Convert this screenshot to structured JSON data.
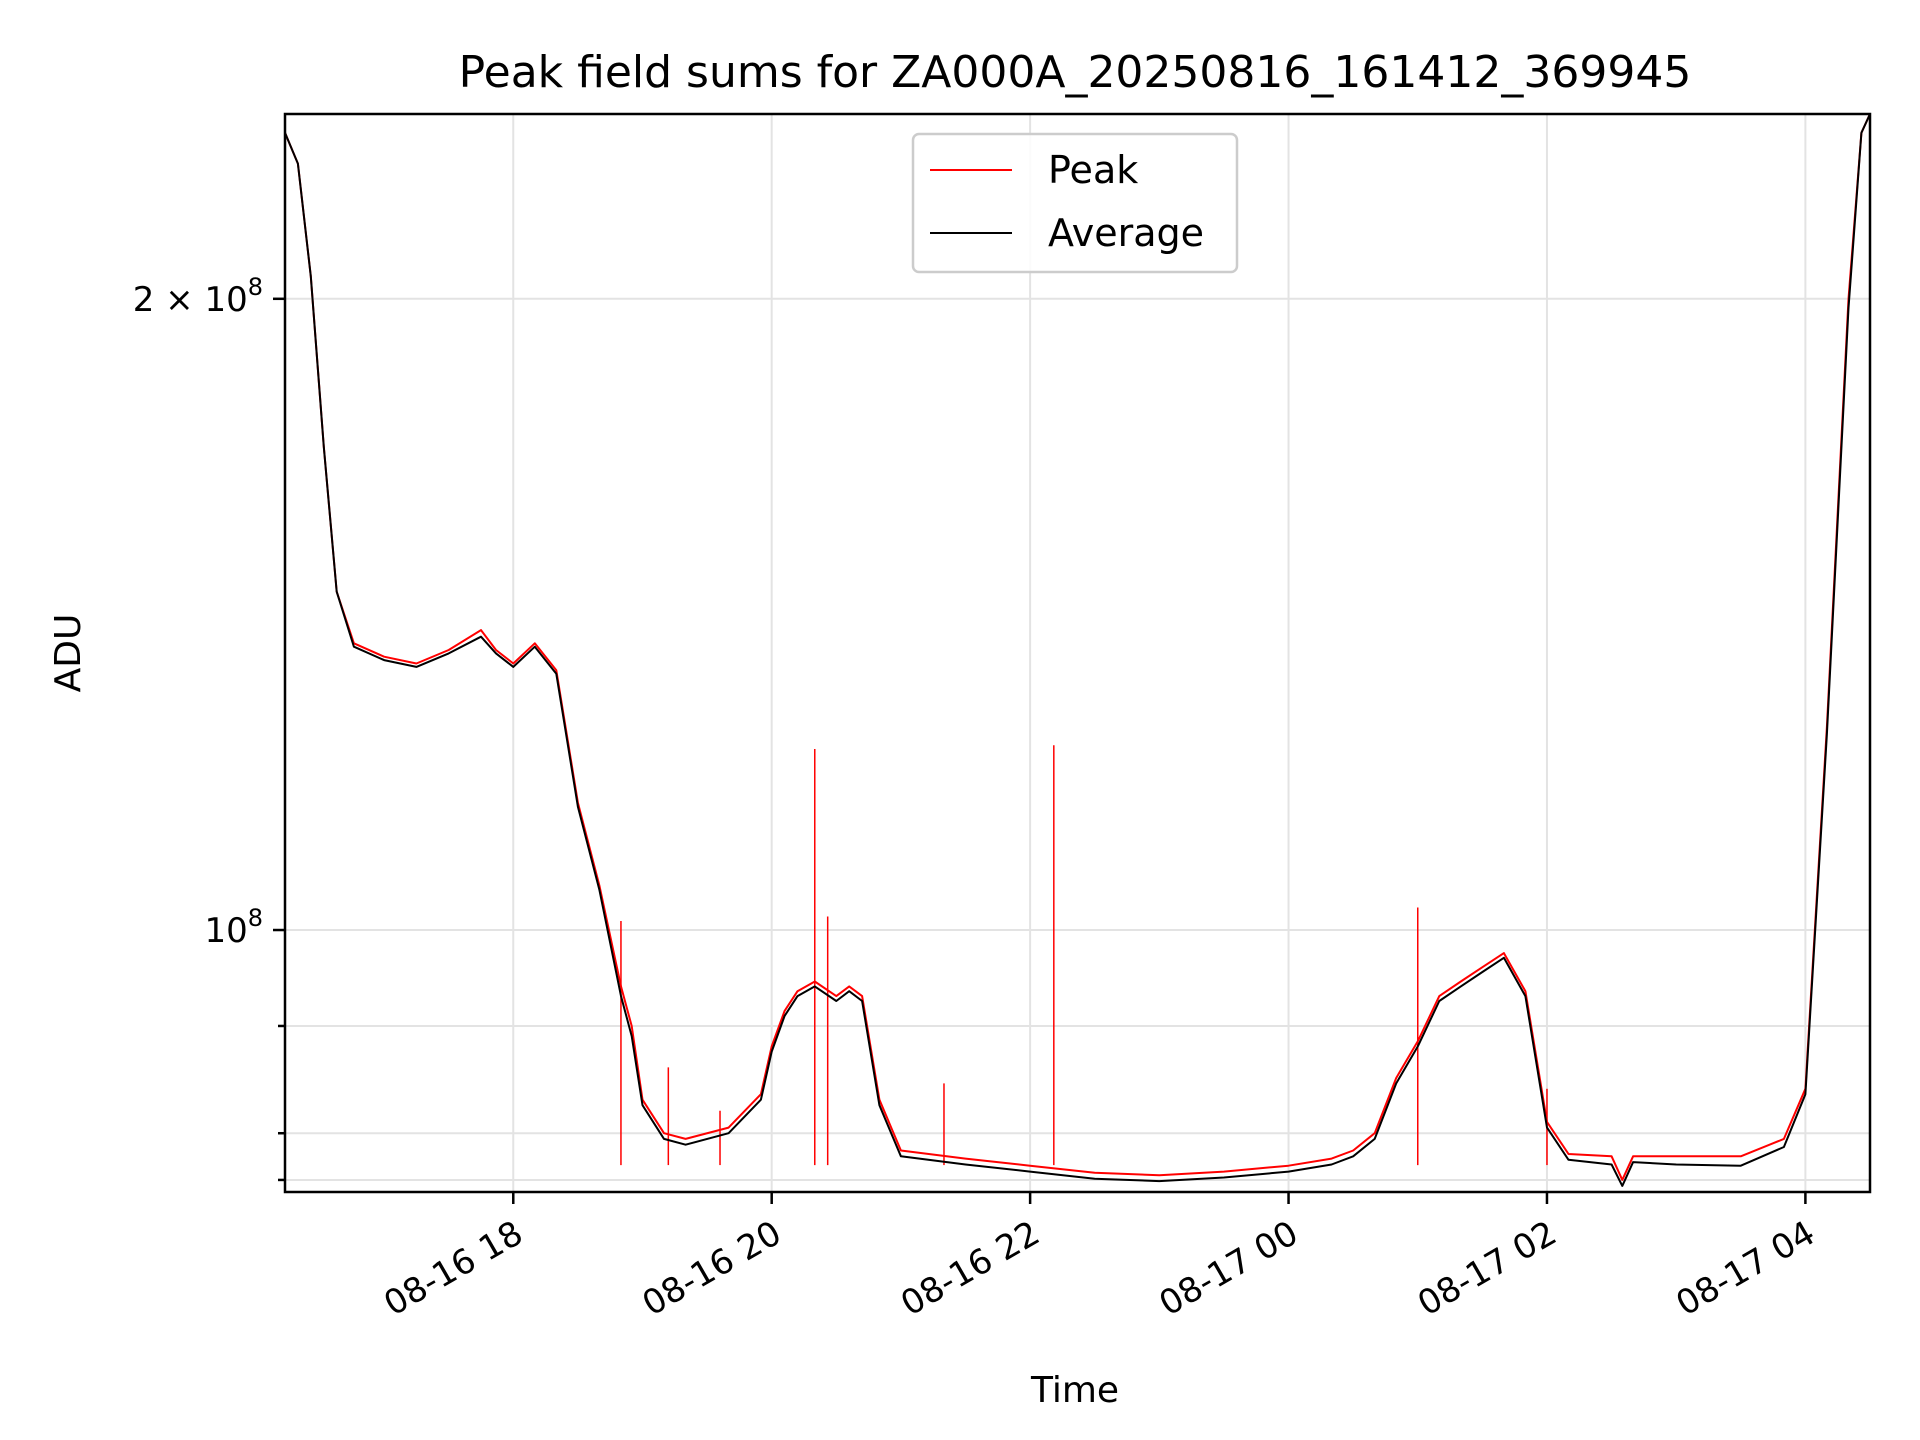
{
  "chart_data": {
    "type": "line",
    "title": "Peak field sums for ZA000A_20250816_161412_369945",
    "xlabel": "Time",
    "ylabel": "ADU",
    "y_scale": "log",
    "ylim": [
      75000000,
      245000000
    ],
    "x_range": [
      "2025-08-16 16:14",
      "2025-08-17 04:30"
    ],
    "x_ticks": [
      {
        "t": "2025-08-16 18:00",
        "label": "08-16 18"
      },
      {
        "t": "2025-08-16 20:00",
        "label": "08-16 20"
      },
      {
        "t": "2025-08-16 22:00",
        "label": "08-16 22"
      },
      {
        "t": "2025-08-17 00:00",
        "label": "08-17 00"
      },
      {
        "t": "2025-08-17 02:00",
        "label": "08-17 02"
      },
      {
        "t": "2025-08-17 04:00",
        "label": "08-17 04"
      }
    ],
    "y_major_ticks": [
      {
        "v": 100000000,
        "base": "10",
        "exp": "8",
        "coef": ""
      },
      {
        "v": 200000000,
        "base": "10",
        "exp": "8",
        "coef": "2 × "
      }
    ],
    "y_minor_ticks": [
      76000000,
      80000000,
      90000000
    ],
    "grid": true,
    "legend_position": "top-center",
    "series": [
      {
        "name": "Peak",
        "color": "#ff0000",
        "points": [
          [
            "2025-08-16 16:14",
            240000000
          ],
          [
            "2025-08-16 16:20",
            232000000
          ],
          [
            "2025-08-16 16:26",
            205000000
          ],
          [
            "2025-08-16 16:32",
            170000000
          ],
          [
            "2025-08-16 16:38",
            145000000
          ],
          [
            "2025-08-16 16:46",
            137000000
          ],
          [
            "2025-08-16 17:00",
            135000000
          ],
          [
            "2025-08-16 17:15",
            134000000
          ],
          [
            "2025-08-16 17:30",
            136000000
          ],
          [
            "2025-08-16 17:45",
            139000000
          ],
          [
            "2025-08-16 17:52",
            136000000
          ],
          [
            "2025-08-16 18:00",
            134000000
          ],
          [
            "2025-08-16 18:10",
            137000000
          ],
          [
            "2025-08-16 18:20",
            133000000
          ],
          [
            "2025-08-16 18:30",
            115000000
          ],
          [
            "2025-08-16 18:40",
            105000000
          ],
          [
            "2025-08-16 18:50",
            94000000
          ],
          [
            "2025-08-16 18:55",
            90000000
          ],
          [
            "2025-08-16 19:00",
            83000000
          ],
          [
            "2025-08-16 19:10",
            80000000
          ],
          [
            "2025-08-16 19:20",
            79500000
          ],
          [
            "2025-08-16 19:40",
            80500000
          ],
          [
            "2025-08-16 19:55",
            83500000
          ],
          [
            "2025-08-16 20:00",
            88000000
          ],
          [
            "2025-08-16 20:06",
            91500000
          ],
          [
            "2025-08-16 20:12",
            93500000
          ],
          [
            "2025-08-16 20:20",
            94500000
          ],
          [
            "2025-08-16 20:30",
            93000000
          ],
          [
            "2025-08-16 20:36",
            94000000
          ],
          [
            "2025-08-16 20:42",
            93000000
          ],
          [
            "2025-08-16 20:50",
            83000000
          ],
          [
            "2025-08-16 21:00",
            78500000
          ],
          [
            "2025-08-16 21:30",
            77800000
          ],
          [
            "2025-08-16 22:00",
            77200000
          ],
          [
            "2025-08-16 22:30",
            76600000
          ],
          [
            "2025-08-16 23:00",
            76400000
          ],
          [
            "2025-08-16 23:30",
            76700000
          ],
          [
            "2025-08-17 00:00",
            77200000
          ],
          [
            "2025-08-17 00:20",
            77800000
          ],
          [
            "2025-08-17 00:30",
            78500000
          ],
          [
            "2025-08-17 00:40",
            80000000
          ],
          [
            "2025-08-17 00:50",
            85000000
          ],
          [
            "2025-08-17 01:00",
            88500000
          ],
          [
            "2025-08-17 01:10",
            93000000
          ],
          [
            "2025-08-17 01:20",
            94500000
          ],
          [
            "2025-08-17 01:30",
            96000000
          ],
          [
            "2025-08-17 01:40",
            97500000
          ],
          [
            "2025-08-17 01:50",
            93500000
          ],
          [
            "2025-08-17 02:00",
            81000000
          ],
          [
            "2025-08-17 02:10",
            78200000
          ],
          [
            "2025-08-17 02:30",
            78000000
          ],
          [
            "2025-08-17 02:35",
            76000000
          ],
          [
            "2025-08-17 02:40",
            78000000
          ],
          [
            "2025-08-17 03:00",
            78000000
          ],
          [
            "2025-08-17 03:30",
            78000000
          ],
          [
            "2025-08-17 03:50",
            79500000
          ],
          [
            "2025-08-17 04:00",
            84000000
          ],
          [
            "2025-08-17 04:10",
            125000000
          ],
          [
            "2025-08-17 04:20",
            200000000
          ],
          [
            "2025-08-17 04:26",
            240000000
          ],
          [
            "2025-08-17 04:30",
            245000000
          ]
        ],
        "spikes": [
          [
            "2025-08-16 18:50",
            101000000
          ],
          [
            "2025-08-16 19:12",
            86000000
          ],
          [
            "2025-08-16 19:36",
            82000000
          ],
          [
            "2025-08-16 20:20",
            122000000
          ],
          [
            "2025-08-16 20:26",
            101500000
          ],
          [
            "2025-08-16 21:20",
            84500000
          ],
          [
            "2025-08-16 22:11",
            122500000
          ],
          [
            "2025-08-17 01:00",
            102500000
          ],
          [
            "2025-08-17 02:00",
            84000000
          ]
        ]
      },
      {
        "name": "Average",
        "color": "#000000",
        "points": [
          [
            "2025-08-16 16:14",
            240000000
          ],
          [
            "2025-08-16 16:20",
            232000000
          ],
          [
            "2025-08-16 16:26",
            205000000
          ],
          [
            "2025-08-16 16:32",
            170000000
          ],
          [
            "2025-08-16 16:38",
            145000000
          ],
          [
            "2025-08-16 16:46",
            136500000
          ],
          [
            "2025-08-16 17:00",
            134500000
          ],
          [
            "2025-08-16 17:15",
            133500000
          ],
          [
            "2025-08-16 17:30",
            135500000
          ],
          [
            "2025-08-16 17:45",
            138000000
          ],
          [
            "2025-08-16 17:52",
            135500000
          ],
          [
            "2025-08-16 18:00",
            133500000
          ],
          [
            "2025-08-16 18:10",
            136500000
          ],
          [
            "2025-08-16 18:20",
            132500000
          ],
          [
            "2025-08-16 18:30",
            114500000
          ],
          [
            "2025-08-16 18:40",
            104500000
          ],
          [
            "2025-08-16 18:50",
            93000000
          ],
          [
            "2025-08-16 18:55",
            89000000
          ],
          [
            "2025-08-16 19:00",
            82500000
          ],
          [
            "2025-08-16 19:10",
            79500000
          ],
          [
            "2025-08-16 19:20",
            79000000
          ],
          [
            "2025-08-16 19:40",
            80000000
          ],
          [
            "2025-08-16 19:55",
            83000000
          ],
          [
            "2025-08-16 20:00",
            87500000
          ],
          [
            "2025-08-16 20:06",
            91000000
          ],
          [
            "2025-08-16 20:12",
            93000000
          ],
          [
            "2025-08-16 20:20",
            94000000
          ],
          [
            "2025-08-16 20:30",
            92500000
          ],
          [
            "2025-08-16 20:36",
            93500000
          ],
          [
            "2025-08-16 20:42",
            92500000
          ],
          [
            "2025-08-16 20:50",
            82500000
          ],
          [
            "2025-08-16 21:00",
            78000000
          ],
          [
            "2025-08-16 21:30",
            77300000
          ],
          [
            "2025-08-16 22:00",
            76700000
          ],
          [
            "2025-08-16 22:30",
            76100000
          ],
          [
            "2025-08-16 23:00",
            75900000
          ],
          [
            "2025-08-16 23:30",
            76200000
          ],
          [
            "2025-08-17 00:00",
            76700000
          ],
          [
            "2025-08-17 00:20",
            77300000
          ],
          [
            "2025-08-17 00:30",
            78000000
          ],
          [
            "2025-08-17 00:40",
            79500000
          ],
          [
            "2025-08-17 00:50",
            84500000
          ],
          [
            "2025-08-17 01:00",
            88000000
          ],
          [
            "2025-08-17 01:10",
            92500000
          ],
          [
            "2025-08-17 01:20",
            94000000
          ],
          [
            "2025-08-17 01:30",
            95500000
          ],
          [
            "2025-08-17 01:40",
            97000000
          ],
          [
            "2025-08-17 01:50",
            93000000
          ],
          [
            "2025-08-17 02:00",
            80500000
          ],
          [
            "2025-08-17 02:10",
            77700000
          ],
          [
            "2025-08-17 02:30",
            77300000
          ],
          [
            "2025-08-17 02:35",
            75500000
          ],
          [
            "2025-08-17 02:40",
            77500000
          ],
          [
            "2025-08-17 03:00",
            77300000
          ],
          [
            "2025-08-17 03:30",
            77200000
          ],
          [
            "2025-08-17 03:50",
            78800000
          ],
          [
            "2025-08-17 04:00",
            83500000
          ],
          [
            "2025-08-17 04:10",
            124000000
          ],
          [
            "2025-08-17 04:20",
            198000000
          ],
          [
            "2025-08-17 04:26",
            240000000
          ],
          [
            "2025-08-17 04:30",
            245000000
          ]
        ]
      }
    ]
  }
}
